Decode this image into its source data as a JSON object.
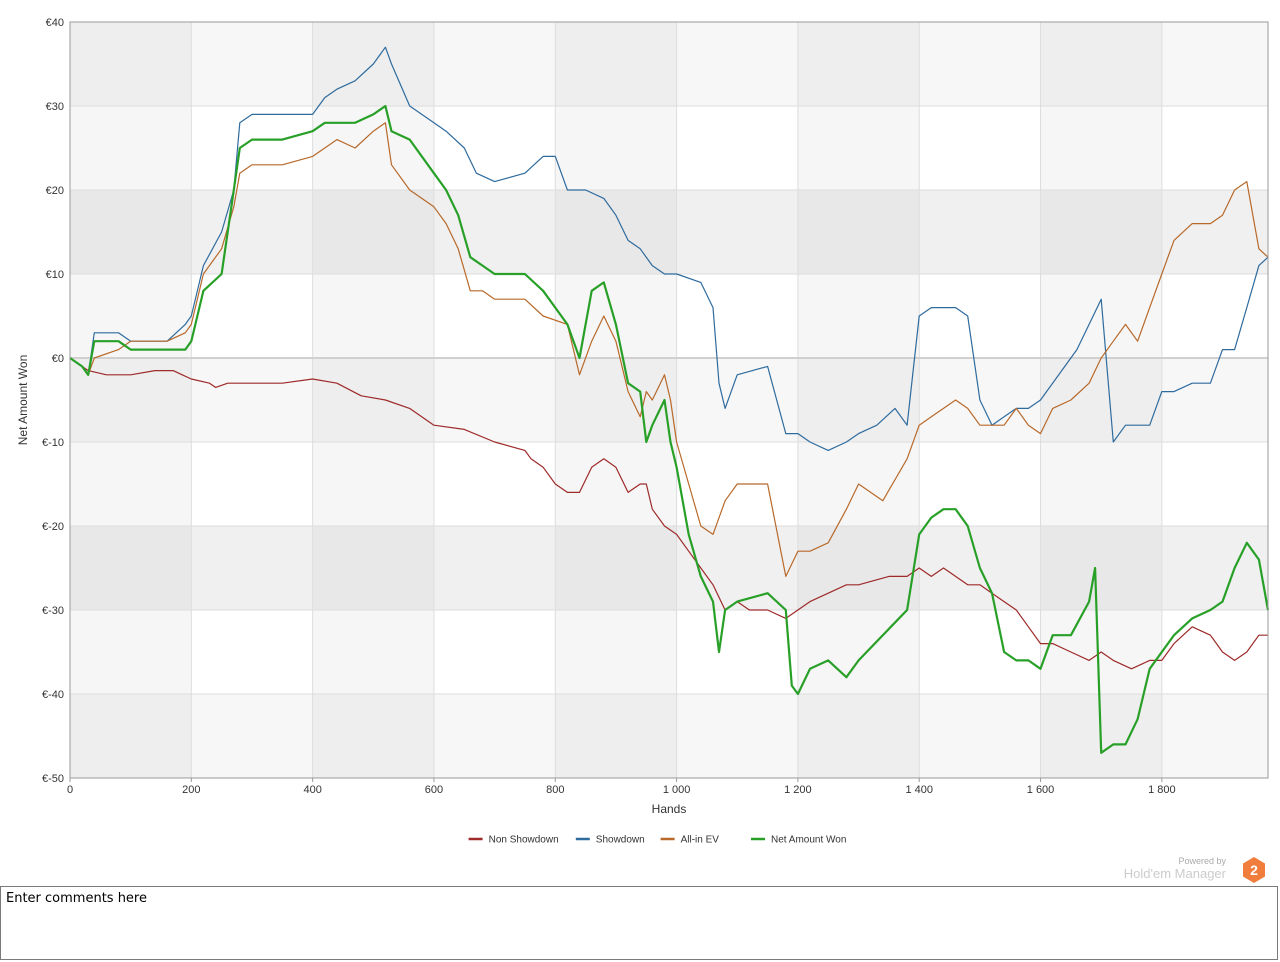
{
  "colors": {
    "non_showdown": "#9e2a2a",
    "showdown": "#2e6b9e",
    "allin_ev": "#b8692a",
    "net_won": "#28a028"
  },
  "branding": {
    "powered_by": "Powered by",
    "product": "Hold'em Manager",
    "logo_number": "2"
  },
  "comments": {
    "text": "Enter comments here"
  },
  "chart_data": {
    "type": "line",
    "title": "",
    "xlabel": "Hands",
    "ylabel": "Net Amount Won",
    "xlim": [
      0,
      1975
    ],
    "ylim": [
      -50,
      40
    ],
    "x_ticks": [
      0,
      200,
      400,
      600,
      800,
      1000,
      1200,
      1400,
      1600,
      1800
    ],
    "x_tick_labels": [
      "0",
      "200",
      "400",
      "600",
      "800",
      "1 000",
      "1 200",
      "1 400",
      "1 600",
      "1 800"
    ],
    "y_ticks": [
      40,
      30,
      20,
      10,
      0,
      -10,
      -20,
      -30,
      -40,
      -50
    ],
    "y_tick_labels": [
      "€40",
      "€30",
      "€20",
      "€10",
      "€0",
      "€-10",
      "€-20",
      "€-30",
      "€-40",
      "€-50"
    ],
    "legend_position": "bottom-center",
    "series": [
      {
        "name": "Non Showdown",
        "color_key": "non_showdown",
        "width": 1.2,
        "x": [
          0,
          20,
          30,
          60,
          100,
          140,
          170,
          185,
          200,
          230,
          240,
          260,
          300,
          350,
          400,
          440,
          480,
          520,
          560,
          600,
          650,
          700,
          750,
          760,
          780,
          800,
          820,
          840,
          860,
          880,
          900,
          920,
          940,
          950,
          960,
          980,
          1000,
          1020,
          1040,
          1060,
          1080,
          1100,
          1120,
          1150,
          1180,
          1200,
          1220,
          1250,
          1280,
          1300,
          1350,
          1380,
          1400,
          1420,
          1440,
          1460,
          1480,
          1500,
          1520,
          1540,
          1560,
          1580,
          1600,
          1620,
          1650,
          1680,
          1700,
          1720,
          1750,
          1780,
          1800,
          1820,
          1850,
          1880,
          1900,
          1920,
          1940,
          1960,
          1975
        ],
        "y": [
          0,
          -1,
          -1.5,
          -2,
          -2,
          -1.5,
          -1.5,
          -2,
          -2.5,
          -3,
          -3.5,
          -3,
          -3,
          -3,
          -2.5,
          -3,
          -4.5,
          -5,
          -6,
          -8,
          -8.5,
          -10,
          -11,
          -12,
          -13,
          -15,
          -16,
          -16,
          -13,
          -12,
          -13,
          -16,
          -15,
          -15,
          -18,
          -20,
          -21,
          -23,
          -25,
          -27,
          -30,
          -29,
          -30,
          -30,
          -31,
          -30,
          -29,
          -28,
          -27,
          -27,
          -26,
          -26,
          -25,
          -26,
          -25,
          -26,
          -27,
          -27,
          -28,
          -29,
          -30,
          -32,
          -34,
          -34,
          -35,
          -36,
          -35,
          -36,
          -37,
          -36,
          -36,
          -34,
          -32,
          -33,
          -35,
          -36,
          -35,
          -33,
          -33
        ]
      },
      {
        "name": "Showdown",
        "color_key": "showdown",
        "width": 1.2,
        "x": [
          0,
          20,
          30,
          40,
          80,
          100,
          130,
          160,
          190,
          200,
          220,
          250,
          270,
          280,
          300,
          350,
          400,
          420,
          440,
          470,
          500,
          520,
          530,
          560,
          600,
          620,
          650,
          670,
          700,
          750,
          780,
          800,
          820,
          850,
          880,
          900,
          920,
          940,
          960,
          980,
          1000,
          1040,
          1060,
          1070,
          1080,
          1100,
          1150,
          1180,
          1200,
          1220,
          1250,
          1280,
          1300,
          1330,
          1360,
          1380,
          1400,
          1420,
          1440,
          1460,
          1480,
          1500,
          1520,
          1540,
          1560,
          1580,
          1600,
          1640,
          1660,
          1680,
          1700,
          1720,
          1740,
          1760,
          1780,
          1800,
          1820,
          1850,
          1880,
          1900,
          1920,
          1940,
          1960,
          1975
        ],
        "y": [
          0,
          -1,
          -2,
          3,
          3,
          2,
          2,
          2,
          4,
          5,
          11,
          15,
          20,
          28,
          29,
          29,
          29,
          31,
          32,
          33,
          35,
          37,
          35,
          30,
          28,
          27,
          25,
          22,
          21,
          22,
          24,
          24,
          20,
          20,
          19,
          17,
          14,
          13,
          11,
          10,
          10,
          9,
          6,
          -3,
          -6,
          -2,
          -1,
          -9,
          -9,
          -10,
          -11,
          -10,
          -9,
          -8,
          -6,
          -8,
          5,
          6,
          6,
          6,
          5,
          -5,
          -8,
          -7,
          -6,
          -6,
          -5,
          -1,
          1,
          4,
          7,
          -10,
          -8,
          -8,
          -8,
          -4,
          -4,
          -3,
          -3,
          1,
          1,
          6,
          11,
          12
        ]
      },
      {
        "name": "All-in EV",
        "color_key": "allin_ev",
        "width": 1.2,
        "x": [
          0,
          20,
          30,
          40,
          80,
          100,
          130,
          160,
          190,
          200,
          220,
          250,
          270,
          280,
          300,
          350,
          400,
          420,
          440,
          470,
          500,
          520,
          530,
          560,
          600,
          620,
          640,
          660,
          680,
          700,
          750,
          780,
          820,
          840,
          860,
          880,
          900,
          920,
          940,
          950,
          960,
          980,
          990,
          1000,
          1020,
          1040,
          1060,
          1080,
          1100,
          1120,
          1150,
          1180,
          1200,
          1220,
          1250,
          1280,
          1300,
          1340,
          1380,
          1400,
          1420,
          1440,
          1460,
          1480,
          1500,
          1520,
          1540,
          1560,
          1580,
          1600,
          1620,
          1650,
          1680,
          1700,
          1720,
          1740,
          1760,
          1780,
          1800,
          1820,
          1850,
          1880,
          1900,
          1920,
          1940,
          1960,
          1975
        ],
        "y": [
          0,
          -1,
          -2,
          0,
          1,
          2,
          2,
          2,
          3,
          4,
          10,
          13,
          18,
          22,
          23,
          23,
          24,
          25,
          26,
          25,
          27,
          28,
          23,
          20,
          18,
          16,
          13,
          8,
          8,
          7,
          7,
          5,
          4,
          -2,
          2,
          5,
          2,
          -4,
          -7,
          -4,
          -5,
          -2,
          -5,
          -10,
          -15,
          -20,
          -21,
          -17,
          -15,
          -15,
          -15,
          -26,
          -23,
          -23,
          -22,
          -18,
          -15,
          -17,
          -12,
          -8,
          -7,
          -6,
          -5,
          -6,
          -8,
          -8,
          -8,
          -6,
          -8,
          -9,
          -6,
          -5,
          -3,
          0,
          2,
          4,
          2,
          6,
          10,
          14,
          16,
          16,
          17,
          20,
          21,
          13,
          12
        ]
      },
      {
        "name": "Net Amount Won",
        "color_key": "net_won",
        "width": 2.2,
        "x": [
          0,
          20,
          30,
          40,
          80,
          100,
          130,
          160,
          190,
          200,
          220,
          250,
          270,
          280,
          300,
          350,
          400,
          420,
          440,
          470,
          500,
          520,
          530,
          560,
          600,
          620,
          640,
          660,
          680,
          700,
          750,
          780,
          820,
          840,
          860,
          880,
          900,
          920,
          940,
          950,
          960,
          980,
          990,
          1000,
          1020,
          1040,
          1060,
          1070,
          1080,
          1100,
          1150,
          1180,
          1190,
          1200,
          1220,
          1250,
          1280,
          1300,
          1340,
          1380,
          1400,
          1420,
          1440,
          1460,
          1480,
          1500,
          1520,
          1540,
          1560,
          1580,
          1600,
          1620,
          1650,
          1680,
          1690,
          1700,
          1720,
          1740,
          1760,
          1780,
          1800,
          1820,
          1850,
          1880,
          1900,
          1920,
          1940,
          1960,
          1975
        ],
        "y": [
          0,
          -1,
          -2,
          2,
          2,
          1,
          1,
          1,
          1,
          2,
          8,
          10,
          20,
          25,
          26,
          26,
          27,
          28,
          28,
          28,
          29,
          30,
          27,
          26,
          22,
          20,
          17,
          12,
          11,
          10,
          10,
          8,
          4,
          0,
          8,
          9,
          4,
          -3,
          -4,
          -10,
          -8,
          -5,
          -10,
          -13,
          -21,
          -26,
          -29,
          -35,
          -30,
          -29,
          -28,
          -30,
          -39,
          -40,
          -37,
          -36,
          -38,
          -36,
          -33,
          -30,
          -21,
          -19,
          -18,
          -18,
          -20,
          -25,
          -28,
          -35,
          -36,
          -36,
          -37,
          -33,
          -33,
          -29,
          -25,
          -47,
          -46,
          -46,
          -43,
          -37,
          -35,
          -33,
          -31,
          -30,
          -29,
          -25,
          -22,
          -24,
          -30
        ]
      }
    ]
  }
}
